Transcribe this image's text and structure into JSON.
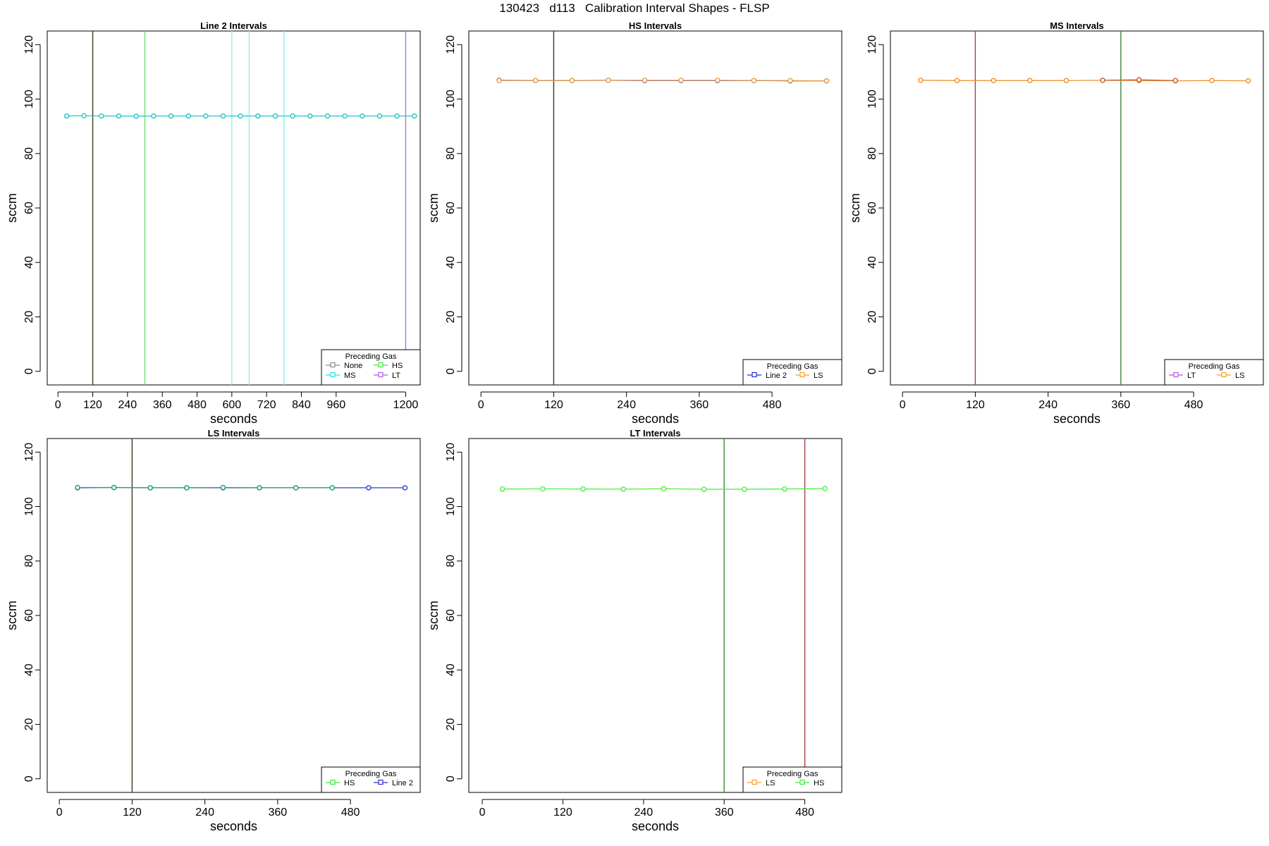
{
  "figure": {
    "title": "130423   d113   Calibration Interval Shapes - FLSP"
  },
  "chart_data": [
    {
      "type": "line",
      "title": "Line 2 Intervals",
      "xlabel": "seconds",
      "ylabel": "sccm",
      "xlim": [
        -37,
        1250
      ],
      "ylim": [
        -5,
        125
      ],
      "xticks": [
        0,
        120,
        240,
        360,
        480,
        600,
        720,
        840,
        960,
        1200
      ],
      "yticks": [
        0,
        20,
        40,
        60,
        80,
        100,
        120
      ],
      "vlines": [
        {
          "x": 120,
          "color": "#3a3a1a"
        },
        {
          "x": 300,
          "color": "#6be36b"
        },
        {
          "x": 600,
          "color": "#7ff4f4"
        },
        {
          "x": 660,
          "color": "#7ff4f4"
        },
        {
          "x": 780,
          "color": "#7ff4f4"
        },
        {
          "x": 1200,
          "color": "#b66ce4"
        }
      ],
      "series": [
        {
          "name": "MS",
          "color": "#1ec8cc",
          "x": [
            30,
            90,
            150,
            210,
            270,
            330,
            390,
            450,
            510,
            570,
            630,
            690,
            750,
            810,
            870,
            930,
            990,
            1050,
            1110,
            1170,
            1230
          ],
          "y": [
            93.8,
            93.9,
            93.8,
            93.8,
            93.7,
            93.8,
            93.8,
            93.8,
            93.8,
            93.8,
            93.8,
            93.8,
            93.8,
            93.8,
            93.8,
            93.8,
            93.8,
            93.8,
            93.8,
            93.8,
            93.8
          ]
        }
      ],
      "legend": {
        "title": "Preceding Gas",
        "position": "bottom-right",
        "columns": 2,
        "entries": [
          {
            "label": "None",
            "color": "#8a8a8a"
          },
          {
            "label": "HS",
            "color": "#3be83b"
          },
          {
            "label": "MS",
            "color": "#2ee0e6"
          },
          {
            "label": "LT",
            "color": "#b657e8"
          }
        ]
      }
    },
    {
      "type": "line",
      "title": "HS Intervals",
      "xlabel": "seconds",
      "ylabel": "sccm",
      "xlim": [
        -20,
        595
      ],
      "ylim": [
        -5,
        125
      ],
      "xticks": [
        0,
        120,
        240,
        360,
        480
      ],
      "yticks": [
        0,
        20,
        40,
        60,
        80,
        100,
        120
      ],
      "vlines": [
        {
          "x": 120,
          "color": "#3a3a1a"
        }
      ],
      "series": [
        {
          "name": "Line 2",
          "color": "#2a2ad6",
          "x": [
            30,
            90,
            150,
            210,
            270,
            330,
            390,
            450,
            510,
            570
          ],
          "y": [
            106.9,
            106.8,
            106.8,
            106.9,
            106.8,
            106.8,
            106.8,
            106.8,
            106.7,
            106.7
          ]
        },
        {
          "name": "LS",
          "color": "#e8a040",
          "x": [
            30,
            90,
            150,
            210,
            270,
            330,
            390,
            450,
            510,
            570
          ],
          "y": [
            106.8,
            106.8,
            106.8,
            106.9,
            106.9,
            106.9,
            106.9,
            106.8,
            106.8,
            106.7
          ]
        }
      ],
      "legend": {
        "title": "Preceding Gas",
        "position": "bottom-right",
        "columns": 2,
        "entries": [
          {
            "label": "Line 2",
            "color": "#2a2ad6"
          },
          {
            "label": "LS",
            "color": "#f0a030"
          }
        ]
      }
    },
    {
      "type": "line",
      "title": "MS Intervals",
      "xlabel": "seconds",
      "ylabel": "sccm",
      "xlim": [
        -20,
        595
      ],
      "ylim": [
        -5,
        125
      ],
      "xticks": [
        0,
        120,
        240,
        360,
        480
      ],
      "yticks": [
        0,
        20,
        40,
        60,
        80,
        100,
        120
      ],
      "vlines": [
        {
          "x": 120,
          "color": "#a84040"
        },
        {
          "x": 360,
          "color": "#3a8a3a"
        }
      ],
      "series": [
        {
          "name": "LS",
          "color": "#f08a20",
          "x": [
            30,
            90,
            150,
            210,
            270,
            330,
            390,
            450,
            510,
            570
          ],
          "y": [
            106.9,
            106.8,
            106.8,
            106.8,
            106.8,
            106.9,
            106.8,
            106.7,
            106.8,
            106.7
          ]
        },
        {
          "name": "LT",
          "color": "#c06030",
          "x": [
            330,
            390,
            450
          ],
          "y": [
            106.9,
            107.1,
            106.8
          ]
        }
      ],
      "legend": {
        "title": "Preceding Gas",
        "position": "bottom-right",
        "columns": 2,
        "entries": [
          {
            "label": "LT",
            "color": "#c04ee0"
          },
          {
            "label": "LS",
            "color": "#f0a030"
          }
        ]
      }
    },
    {
      "type": "line",
      "title": "LS Intervals",
      "xlabel": "seconds",
      "ylabel": "sccm",
      "xlim": [
        -20,
        595
      ],
      "ylim": [
        -5,
        125
      ],
      "xticks": [
        0,
        120,
        240,
        360,
        480
      ],
      "yticks": [
        0,
        20,
        40,
        60,
        80,
        100,
        120
      ],
      "vlines": [
        {
          "x": 120,
          "color": "#3a3a1a"
        }
      ],
      "series": [
        {
          "name": "Line 2",
          "color": "#2a40d6",
          "x": [
            30,
            90,
            150,
            210,
            270,
            330,
            390,
            450,
            510,
            570
          ],
          "y": [
            106.9,
            107.0,
            106.9,
            106.9,
            106.9,
            106.9,
            106.9,
            106.9,
            106.9,
            106.9
          ]
        },
        {
          "name": "HS",
          "color": "#1aa860",
          "x": [
            30,
            90,
            150,
            210,
            270,
            330,
            390,
            450
          ],
          "y": [
            107.0,
            107.0,
            106.9,
            106.9,
            107.0,
            106.9,
            106.9,
            106.9
          ]
        }
      ],
      "legend": {
        "title": "Preceding Gas",
        "position": "bottom-right",
        "columns": 2,
        "entries": [
          {
            "label": "HS",
            "color": "#3be83b"
          },
          {
            "label": "Line 2",
            "color": "#2a2ad6"
          }
        ]
      }
    },
    {
      "type": "line",
      "title": "LT Intervals",
      "xlabel": "seconds",
      "ylabel": "sccm",
      "xlim": [
        -20,
        535
      ],
      "ylim": [
        -5,
        125
      ],
      "xticks": [
        0,
        120,
        240,
        360,
        480
      ],
      "yticks": [
        0,
        20,
        40,
        60,
        80,
        100,
        120
      ],
      "vlines": [
        {
          "x": 360,
          "color": "#3a8a3a"
        },
        {
          "x": 480,
          "color": "#a84040"
        }
      ],
      "series": [
        {
          "name": "LS",
          "color": "#b8e030",
          "x": [
            30,
            90,
            150,
            210,
            270,
            330,
            390,
            450,
            510
          ],
          "y": [
            106.4,
            106.5,
            106.4,
            106.4,
            106.6,
            106.3,
            106.3,
            106.4,
            106.6
          ]
        },
        {
          "name": "HS",
          "color": "#50f050",
          "x": [
            30,
            90,
            150,
            210,
            270,
            330,
            390,
            450,
            510
          ],
          "y": [
            106.5,
            106.5,
            106.5,
            106.4,
            106.5,
            106.4,
            106.4,
            106.5,
            106.6
          ]
        }
      ],
      "legend": {
        "title": "Preceding Gas",
        "position": "bottom-right",
        "columns": 2,
        "entries": [
          {
            "label": "LS",
            "color": "#f0a030"
          },
          {
            "label": "HS",
            "color": "#3be83b"
          }
        ]
      }
    }
  ]
}
